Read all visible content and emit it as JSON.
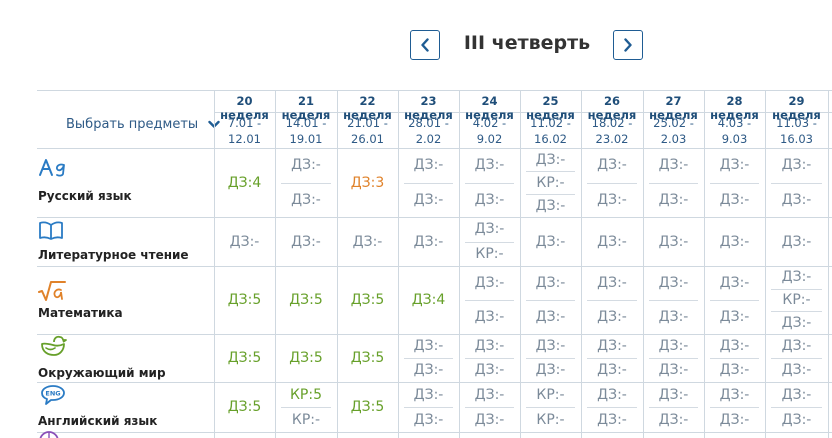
{
  "nav": {
    "title": "III четверть"
  },
  "filter": {
    "label": "Выбрать предметы"
  },
  "weeks": [
    {
      "label": "20 неделя",
      "range1": "7.01 -",
      "range2": "12.01"
    },
    {
      "label": "21 неделя",
      "range1": "14.01 -",
      "range2": "19.01"
    },
    {
      "label": "22 неделя",
      "range1": "21.01 -",
      "range2": "26.01"
    },
    {
      "label": "23 неделя",
      "range1": "28.01 -",
      "range2": "2.02"
    },
    {
      "label": "24 неделя",
      "range1": "4.02 -",
      "range2": "9.02"
    },
    {
      "label": "25 неделя",
      "range1": "11.02 -",
      "range2": "16.02"
    },
    {
      "label": "26 неделя",
      "range1": "18.02 -",
      "range2": "23.02"
    },
    {
      "label": "27 неделя",
      "range1": "25.02 -",
      "range2": "2.03"
    },
    {
      "label": "28 неделя",
      "range1": "4.03 -",
      "range2": "9.03"
    },
    {
      "label": "29 неделя",
      "range1": "11.03 -",
      "range2": "16.03"
    }
  ],
  "subjects": [
    {
      "name": "Русский язык",
      "icon": "russian-language-icon",
      "cells": [
        [
          {
            "t": "ДЗ:4",
            "c": "g"
          }
        ],
        [
          {
            "t": "ДЗ:-",
            "c": ""
          },
          {
            "t": "ДЗ:-",
            "c": ""
          }
        ],
        [
          {
            "t": "ДЗ:3",
            "c": "o"
          }
        ],
        [
          {
            "t": "ДЗ:-",
            "c": ""
          },
          {
            "t": "ДЗ:-",
            "c": ""
          }
        ],
        [
          {
            "t": "ДЗ:-",
            "c": ""
          },
          {
            "t": "ДЗ:-",
            "c": ""
          }
        ],
        [
          {
            "t": "ДЗ:-",
            "c": ""
          },
          {
            "t": "КР:-",
            "c": ""
          },
          {
            "t": "ДЗ:-",
            "c": ""
          }
        ],
        [
          {
            "t": "ДЗ:-",
            "c": ""
          },
          {
            "t": "ДЗ:-",
            "c": ""
          }
        ],
        [
          {
            "t": "ДЗ:-",
            "c": ""
          },
          {
            "t": "ДЗ:-",
            "c": ""
          }
        ],
        [
          {
            "t": "ДЗ:-",
            "c": ""
          },
          {
            "t": "ДЗ:-",
            "c": ""
          }
        ],
        [
          {
            "t": "ДЗ:-",
            "c": ""
          },
          {
            "t": "ДЗ:-",
            "c": ""
          }
        ]
      ]
    },
    {
      "name": "Литературное чтение",
      "icon": "book-icon",
      "cells": [
        [
          {
            "t": "ДЗ:-",
            "c": ""
          }
        ],
        [
          {
            "t": "ДЗ:-",
            "c": ""
          }
        ],
        [
          {
            "t": "ДЗ:-",
            "c": ""
          }
        ],
        [
          {
            "t": "ДЗ:-",
            "c": ""
          }
        ],
        [
          {
            "t": "ДЗ:-",
            "c": ""
          },
          {
            "t": "КР:-",
            "c": ""
          }
        ],
        [
          {
            "t": "ДЗ:-",
            "c": ""
          }
        ],
        [
          {
            "t": "ДЗ:-",
            "c": ""
          }
        ],
        [
          {
            "t": "ДЗ:-",
            "c": ""
          }
        ],
        [
          {
            "t": "ДЗ:-",
            "c": ""
          }
        ],
        [
          {
            "t": "ДЗ:-",
            "c": ""
          }
        ]
      ]
    },
    {
      "name": "Математика",
      "icon": "math-root-icon",
      "cells": [
        [
          {
            "t": "ДЗ:5",
            "c": "g"
          }
        ],
        [
          {
            "t": "ДЗ:5",
            "c": "g"
          }
        ],
        [
          {
            "t": "ДЗ:5",
            "c": "g"
          }
        ],
        [
          {
            "t": "ДЗ:4",
            "c": "g"
          }
        ],
        [
          {
            "t": "ДЗ:-",
            "c": ""
          },
          {
            "t": "ДЗ:-",
            "c": ""
          }
        ],
        [
          {
            "t": "ДЗ:-",
            "c": ""
          },
          {
            "t": "ДЗ:-",
            "c": ""
          }
        ],
        [
          {
            "t": "ДЗ:-",
            "c": ""
          },
          {
            "t": "ДЗ:-",
            "c": ""
          }
        ],
        [
          {
            "t": "ДЗ:-",
            "c": ""
          },
          {
            "t": "ДЗ:-",
            "c": ""
          }
        ],
        [
          {
            "t": "ДЗ:-",
            "c": ""
          },
          {
            "t": "ДЗ:-",
            "c": ""
          }
        ],
        [
          {
            "t": "ДЗ:-",
            "c": ""
          },
          {
            "t": "КР:-",
            "c": ""
          },
          {
            "t": "ДЗ:-",
            "c": ""
          }
        ]
      ]
    },
    {
      "name": "Окружающий мир",
      "icon": "bird-icon",
      "cells": [
        [
          {
            "t": "ДЗ:5",
            "c": "g"
          }
        ],
        [
          {
            "t": "ДЗ:5",
            "c": "g"
          }
        ],
        [
          {
            "t": "ДЗ:5",
            "c": "g"
          }
        ],
        [
          {
            "t": "ДЗ:-",
            "c": ""
          },
          {
            "t": "ДЗ:-",
            "c": ""
          }
        ],
        [
          {
            "t": "ДЗ:-",
            "c": ""
          },
          {
            "t": "ДЗ:-",
            "c": ""
          }
        ],
        [
          {
            "t": "ДЗ:-",
            "c": ""
          },
          {
            "t": "ДЗ:-",
            "c": ""
          }
        ],
        [
          {
            "t": "ДЗ:-",
            "c": ""
          },
          {
            "t": "ДЗ:-",
            "c": ""
          }
        ],
        [
          {
            "t": "ДЗ:-",
            "c": ""
          },
          {
            "t": "ДЗ:-",
            "c": ""
          }
        ],
        [
          {
            "t": "ДЗ:-",
            "c": ""
          },
          {
            "t": "ДЗ:-",
            "c": ""
          }
        ],
        [
          {
            "t": "ДЗ:-",
            "c": ""
          },
          {
            "t": "ДЗ:-",
            "c": ""
          }
        ]
      ]
    },
    {
      "name": "Английский язык",
      "icon": "english-speech-icon",
      "cells": [
        [
          {
            "t": "ДЗ:5",
            "c": "g"
          }
        ],
        [
          {
            "t": "КР:5",
            "c": "g"
          },
          {
            "t": "КР:-",
            "c": ""
          }
        ],
        [
          {
            "t": "ДЗ:5",
            "c": "g"
          }
        ],
        [
          {
            "t": "ДЗ:-",
            "c": ""
          },
          {
            "t": "ДЗ:-",
            "c": ""
          }
        ],
        [
          {
            "t": "ДЗ:-",
            "c": ""
          },
          {
            "t": "ДЗ:-",
            "c": ""
          }
        ],
        [
          {
            "t": "КР:-",
            "c": ""
          },
          {
            "t": "КР:-",
            "c": ""
          }
        ],
        [
          {
            "t": "ДЗ:-",
            "c": ""
          },
          {
            "t": "ДЗ:-",
            "c": ""
          }
        ],
        [
          {
            "t": "ДЗ:-",
            "c": ""
          },
          {
            "t": "ДЗ:-",
            "c": ""
          }
        ],
        [
          {
            "t": "ДЗ:-",
            "c": ""
          },
          {
            "t": "ДЗ:-",
            "c": ""
          }
        ],
        [
          {
            "t": "ДЗ:-",
            "c": ""
          },
          {
            "t": "ДЗ:-",
            "c": ""
          }
        ]
      ]
    }
  ]
}
